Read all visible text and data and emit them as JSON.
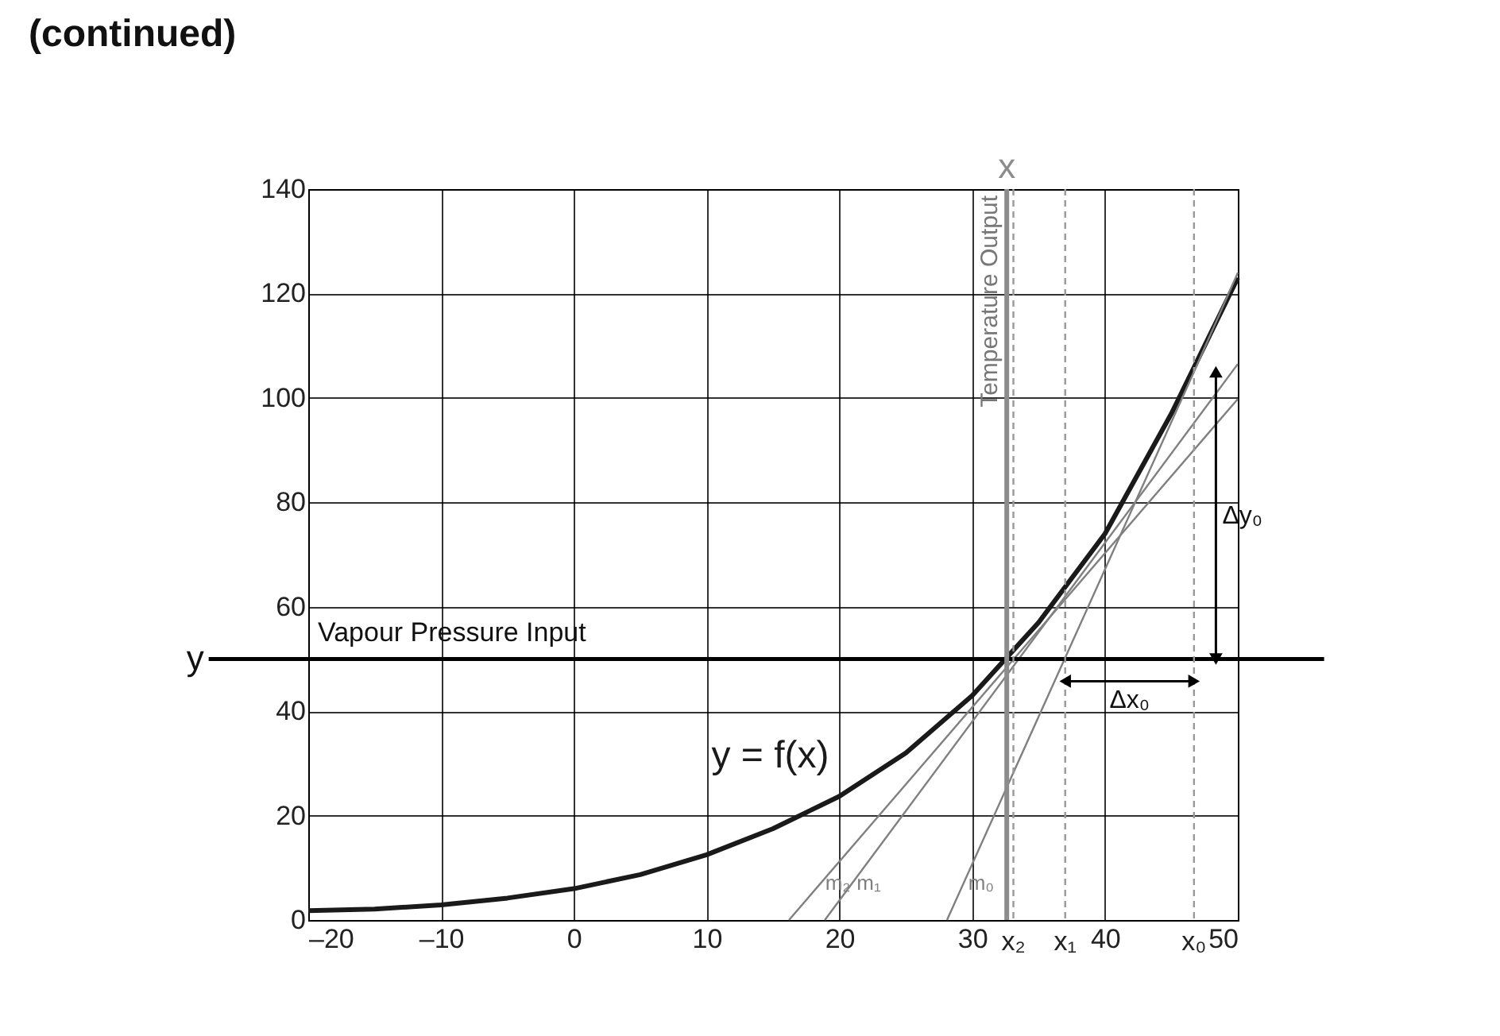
{
  "chart_data": {
    "type": "line",
    "title": "(continued)",
    "xlim": [
      -20,
      50
    ],
    "ylim": [
      0,
      140
    ],
    "xticks": [
      {
        "value": -20,
        "label": "–20"
      },
      {
        "value": -10,
        "label": "–10"
      },
      0,
      10,
      20,
      30,
      40,
      50
    ],
    "yticks": [
      0,
      20,
      40,
      60,
      80,
      100,
      120,
      140
    ],
    "grid": true,
    "series": [
      {
        "name": "y = f(x)",
        "color": "#1a1a1a",
        "x": [
          -20,
          -15,
          -10,
          -5,
          0,
          5,
          10,
          15,
          20,
          25,
          30,
          35,
          40,
          45,
          50
        ],
        "values": [
          1.8,
          2.1,
          2.9,
          4.2,
          6,
          8.7,
          12.5,
          17.5,
          23.7,
          32,
          43,
          57,
          74,
          97,
          123
        ]
      },
      {
        "name": "m₀",
        "color": "#808080",
        "x": [
          28.1,
          46.7,
          50
        ],
        "values": [
          0,
          105,
          124
        ]
      },
      {
        "name": "m₁",
        "color": "#808080",
        "x": [
          18.9,
          50
        ],
        "values": [
          0,
          106.5
        ]
      },
      {
        "name": "m₂",
        "color": "#808080",
        "x": [
          16.2,
          50
        ],
        "values": [
          0,
          99.8
        ]
      }
    ],
    "ref_lines": [
      {
        "axis": "y",
        "value": 50,
        "label": "Vapour Pressure Input",
        "color": "#000000",
        "line_style": "solid"
      },
      {
        "axis": "x",
        "value": 32.6,
        "label": "Temperature Output",
        "color": "#8c8c8c",
        "line_style": "solid"
      },
      {
        "axis": "x",
        "value": 33.1,
        "label": "x₂",
        "color": "#999999",
        "line_style": "dashed"
      },
      {
        "axis": "x",
        "value": 37,
        "label": "x₁",
        "color": "#999999",
        "line_style": "dashed"
      },
      {
        "axis": "x",
        "value": 46.7,
        "label": "x₀",
        "color": "#999999",
        "line_style": "dashed"
      }
    ],
    "annotations": [
      "x",
      "y",
      "Δy₀",
      "Δx₀"
    ]
  }
}
